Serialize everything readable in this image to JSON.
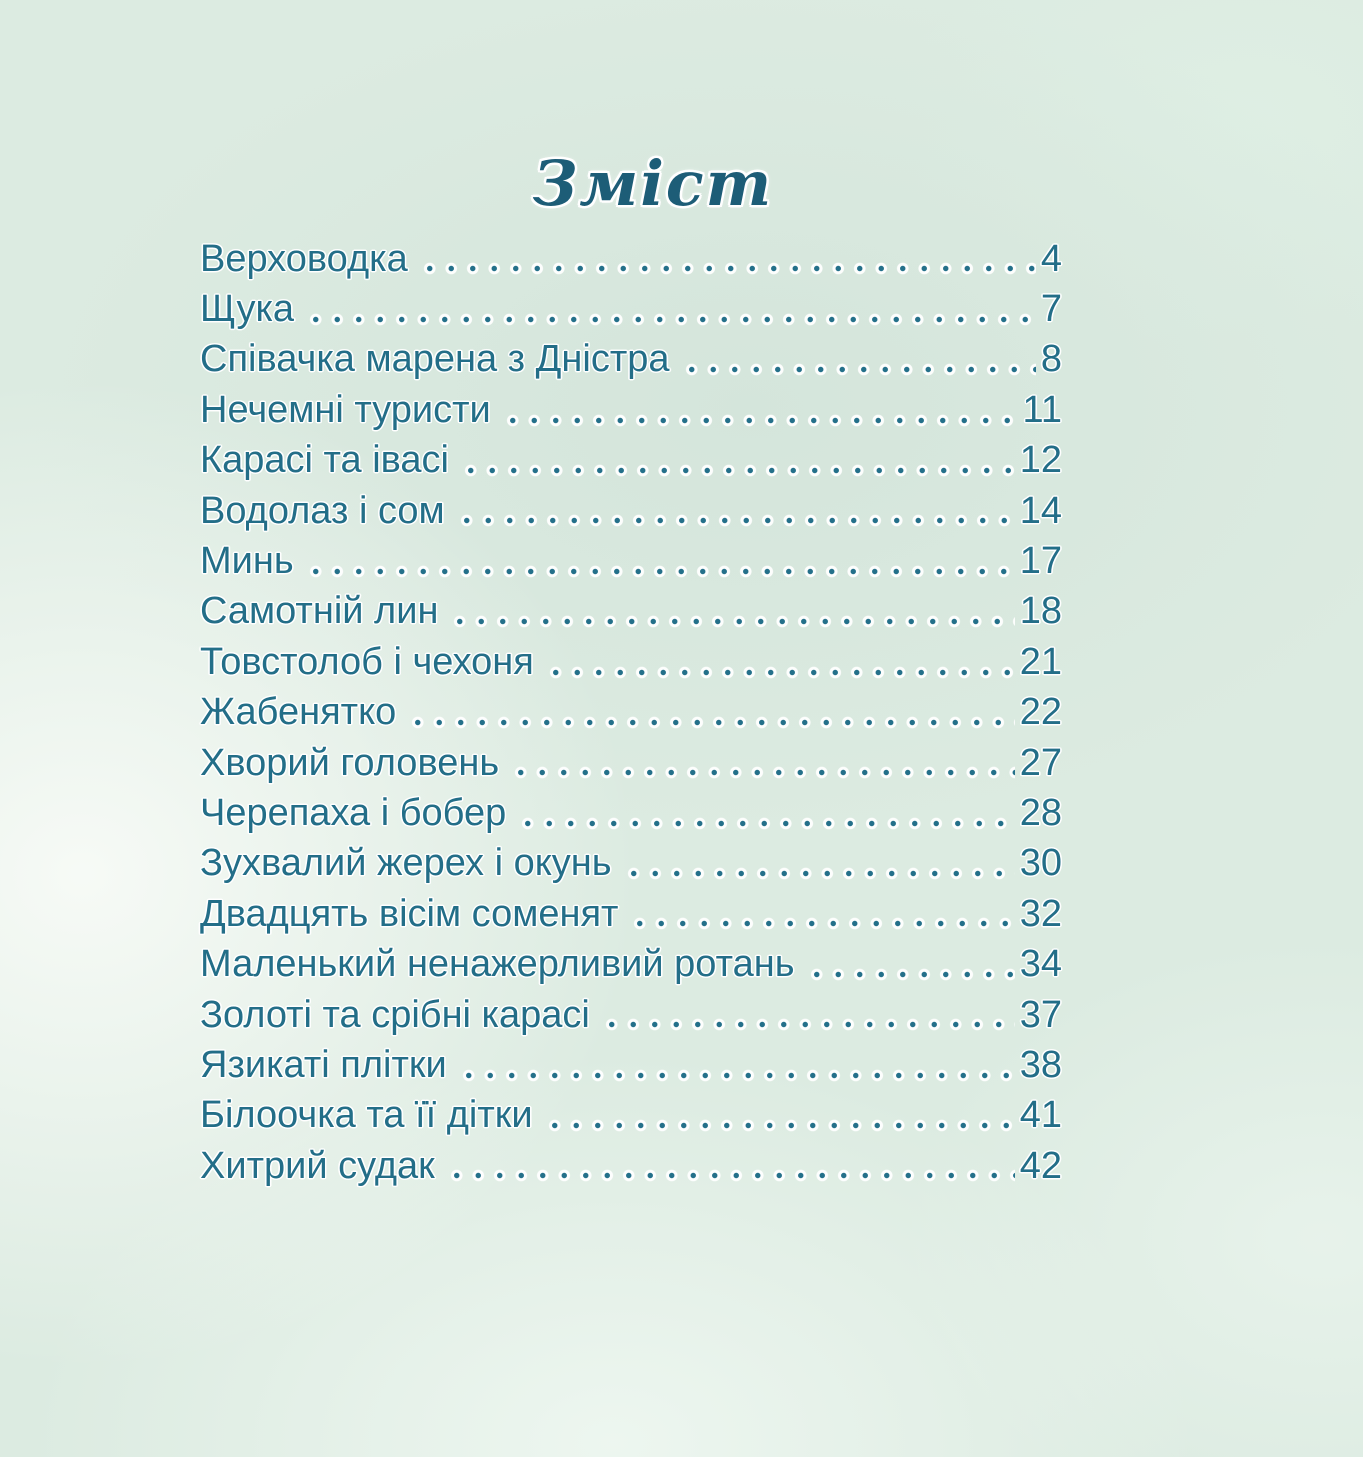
{
  "page": {
    "title": "Зміст"
  },
  "toc": {
    "entries": [
      {
        "title": "Верховодка",
        "page": "4"
      },
      {
        "title": "Щука",
        "page": "7"
      },
      {
        "title": "Співачка марена з Дністра",
        "page": "8"
      },
      {
        "title": "Нечемні туристи",
        "page": "11"
      },
      {
        "title": "Карасі та івасі",
        "page": "12"
      },
      {
        "title": "Водолаз і сом",
        "page": "14"
      },
      {
        "title": "Минь",
        "page": "17"
      },
      {
        "title": "Самотній лин",
        "page": "18"
      },
      {
        "title": "Товстолоб і чехоня",
        "page": "21"
      },
      {
        "title": "Жабенятко",
        "page": "22"
      },
      {
        "title": "Хворий головень",
        "page": "27"
      },
      {
        "title": "Черепаха і бобер",
        "page": "28"
      },
      {
        "title": "Зухвалий жерех і окунь",
        "page": "30"
      },
      {
        "title": "Двадцять вісім соменят",
        "page": "32"
      },
      {
        "title": "Маленький ненажерливий ротань",
        "page": "34"
      },
      {
        "title": "Золоті та срібні карасі",
        "page": "37"
      },
      {
        "title": "Язикаті плітки",
        "page": "38"
      },
      {
        "title": "Білоочка та її дітки",
        "page": "41"
      },
      {
        "title": "Хитрий судак",
        "page": "42"
      }
    ]
  },
  "colors": {
    "entry_text": "#236e88",
    "title_text": "#1d5d77",
    "dot_leader": "#24708a",
    "background": "#dcebe1"
  }
}
